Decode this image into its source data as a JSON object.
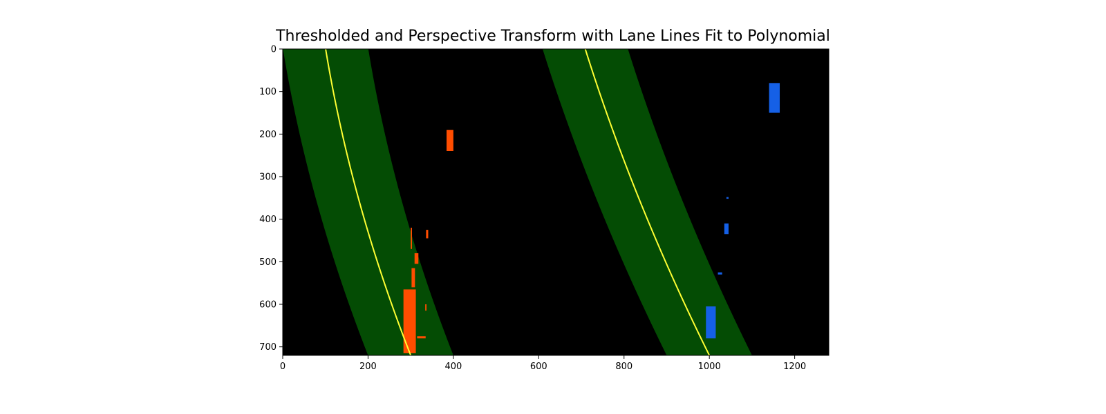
{
  "chart_data": {
    "type": "image",
    "title": "Thresholded and Perspective Transform with Lane Lines Fit to Polynomial",
    "xlabel": "",
    "ylabel": "",
    "xlim": [
      0,
      1280
    ],
    "ylim": [
      720,
      0
    ],
    "xticks": [
      0,
      200,
      400,
      600,
      800,
      1000,
      1200
    ],
    "yticks": [
      0,
      100,
      200,
      300,
      400,
      500,
      600,
      700
    ],
    "grid": false,
    "colors": {
      "background": "#000000",
      "lane_band": "#044c04",
      "fit_line": "#ffff33",
      "left_pixels": "#ff4d00",
      "right_pixels": "#1560e6"
    },
    "fits": {
      "left": {
        "quadratic": [
          300,
          0.39,
          0.000157
        ]
      },
      "right": {
        "quadratic": [
          1000,
          0.494,
          0.000125
        ]
      },
      "band_half_width": 100
    },
    "left_pixels": [
      {
        "y": [
          565,
          715
        ],
        "x": [
          283,
          312
        ]
      },
      {
        "y": [
          515,
          560
        ],
        "x": [
          302,
          310
        ]
      },
      {
        "y": [
          480,
          505
        ],
        "x": [
          309,
          318
        ]
      },
      {
        "y": [
          420,
          470
        ],
        "x": [
          300,
          303
        ]
      },
      {
        "y": [
          425,
          445
        ],
        "x": [
          336,
          341
        ]
      },
      {
        "y": [
          190,
          240
        ],
        "x": [
          384,
          400
        ]
      },
      {
        "y": [
          600,
          615
        ],
        "x": [
          334,
          337
        ]
      },
      {
        "y": [
          675,
          680
        ],
        "x": [
          315,
          335
        ]
      }
    ],
    "right_pixels": [
      {
        "y": [
          605,
          680
        ],
        "x": [
          992,
          1015
        ]
      },
      {
        "y": [
          80,
          150
        ],
        "x": [
          1140,
          1165
        ]
      },
      {
        "y": [
          410,
          435
        ],
        "x": [
          1035,
          1045
        ]
      },
      {
        "y": [
          525,
          530
        ],
        "x": [
          1020,
          1030
        ]
      },
      {
        "y": [
          348,
          352
        ],
        "x": [
          1040,
          1045
        ]
      }
    ]
  }
}
